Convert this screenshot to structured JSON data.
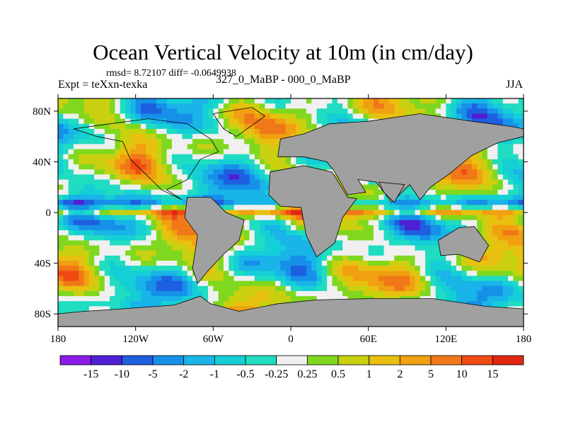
{
  "chart_data": {
    "type": "heatmap",
    "title": "Ocean Vertical Velocity at 10m (in cm/day)",
    "stats_text": "rmsd= 8.72107 diff= -0.0649938",
    "left_label": "Expt = teXxn-texka",
    "center_label": "327_0_MaBP - 000_0_MaBP",
    "right_label": "JJA",
    "x_ticks": [
      "180",
      "120W",
      "60W",
      "0",
      "60E",
      "120E",
      "180"
    ],
    "x_tick_values": [
      -180,
      -120,
      -60,
      0,
      60,
      120,
      180
    ],
    "y_ticks": [
      "80N",
      "40N",
      "0",
      "40S",
      "80S"
    ],
    "y_tick_values": [
      80,
      40,
      0,
      -40,
      -80
    ],
    "xlim": [
      -180,
      180
    ],
    "ylim": [
      -90,
      90
    ],
    "colorbar": {
      "levels": [
        "-15",
        "-10",
        "-5",
        "-2",
        "-1",
        "-0.5",
        "-0.25",
        "0.25",
        "0.5",
        "1",
        "2",
        "5",
        "10",
        "15"
      ],
      "colors": [
        "#8b1ce8",
        "#4f1fd4",
        "#1e5fe0",
        "#1690e8",
        "#19b4e8",
        "#15cfd6",
        "#20dcc0",
        "#f0f0f0",
        "#7fd81f",
        "#c8d010",
        "#e8c010",
        "#f0a010",
        "#f07818",
        "#f04a14",
        "#e02810"
      ]
    },
    "land_color": "#a0a0a0"
  }
}
